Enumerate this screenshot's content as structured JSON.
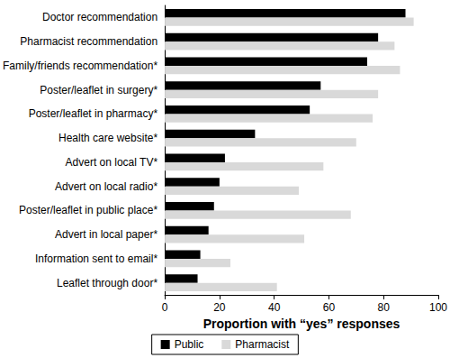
{
  "chart_data": {
    "type": "bar",
    "orientation": "horizontal",
    "xlabel": "Proportion with “yes” responses",
    "categories": [
      "Doctor recommendation",
      "Pharmacist recommendation",
      "Family/friends recommendation*",
      "Poster/leaflet in surgery*",
      "Poster/leaflet in pharmacy*",
      "Health care website*",
      "Advert on local TV*",
      "Advert on local radio*",
      "Poster/leaflet in public place*",
      "Advert in local paper*",
      "Information sent to email*",
      "Leaflet through door*"
    ],
    "series": [
      {
        "name": "Public",
        "color": "#000000",
        "values": [
          88,
          78,
          74,
          57,
          53,
          33,
          22,
          20,
          18,
          16,
          13,
          12
        ]
      },
      {
        "name": "Pharmacist",
        "color": "#d9d9d9",
        "values": [
          91,
          84,
          86,
          78,
          76,
          70,
          58,
          49,
          68,
          51,
          24,
          41
        ]
      }
    ],
    "xlim": [
      0,
      100
    ],
    "xticks": [
      0,
      20,
      40,
      60,
      80,
      100
    ],
    "grid": false,
    "legend": "bottom"
  }
}
